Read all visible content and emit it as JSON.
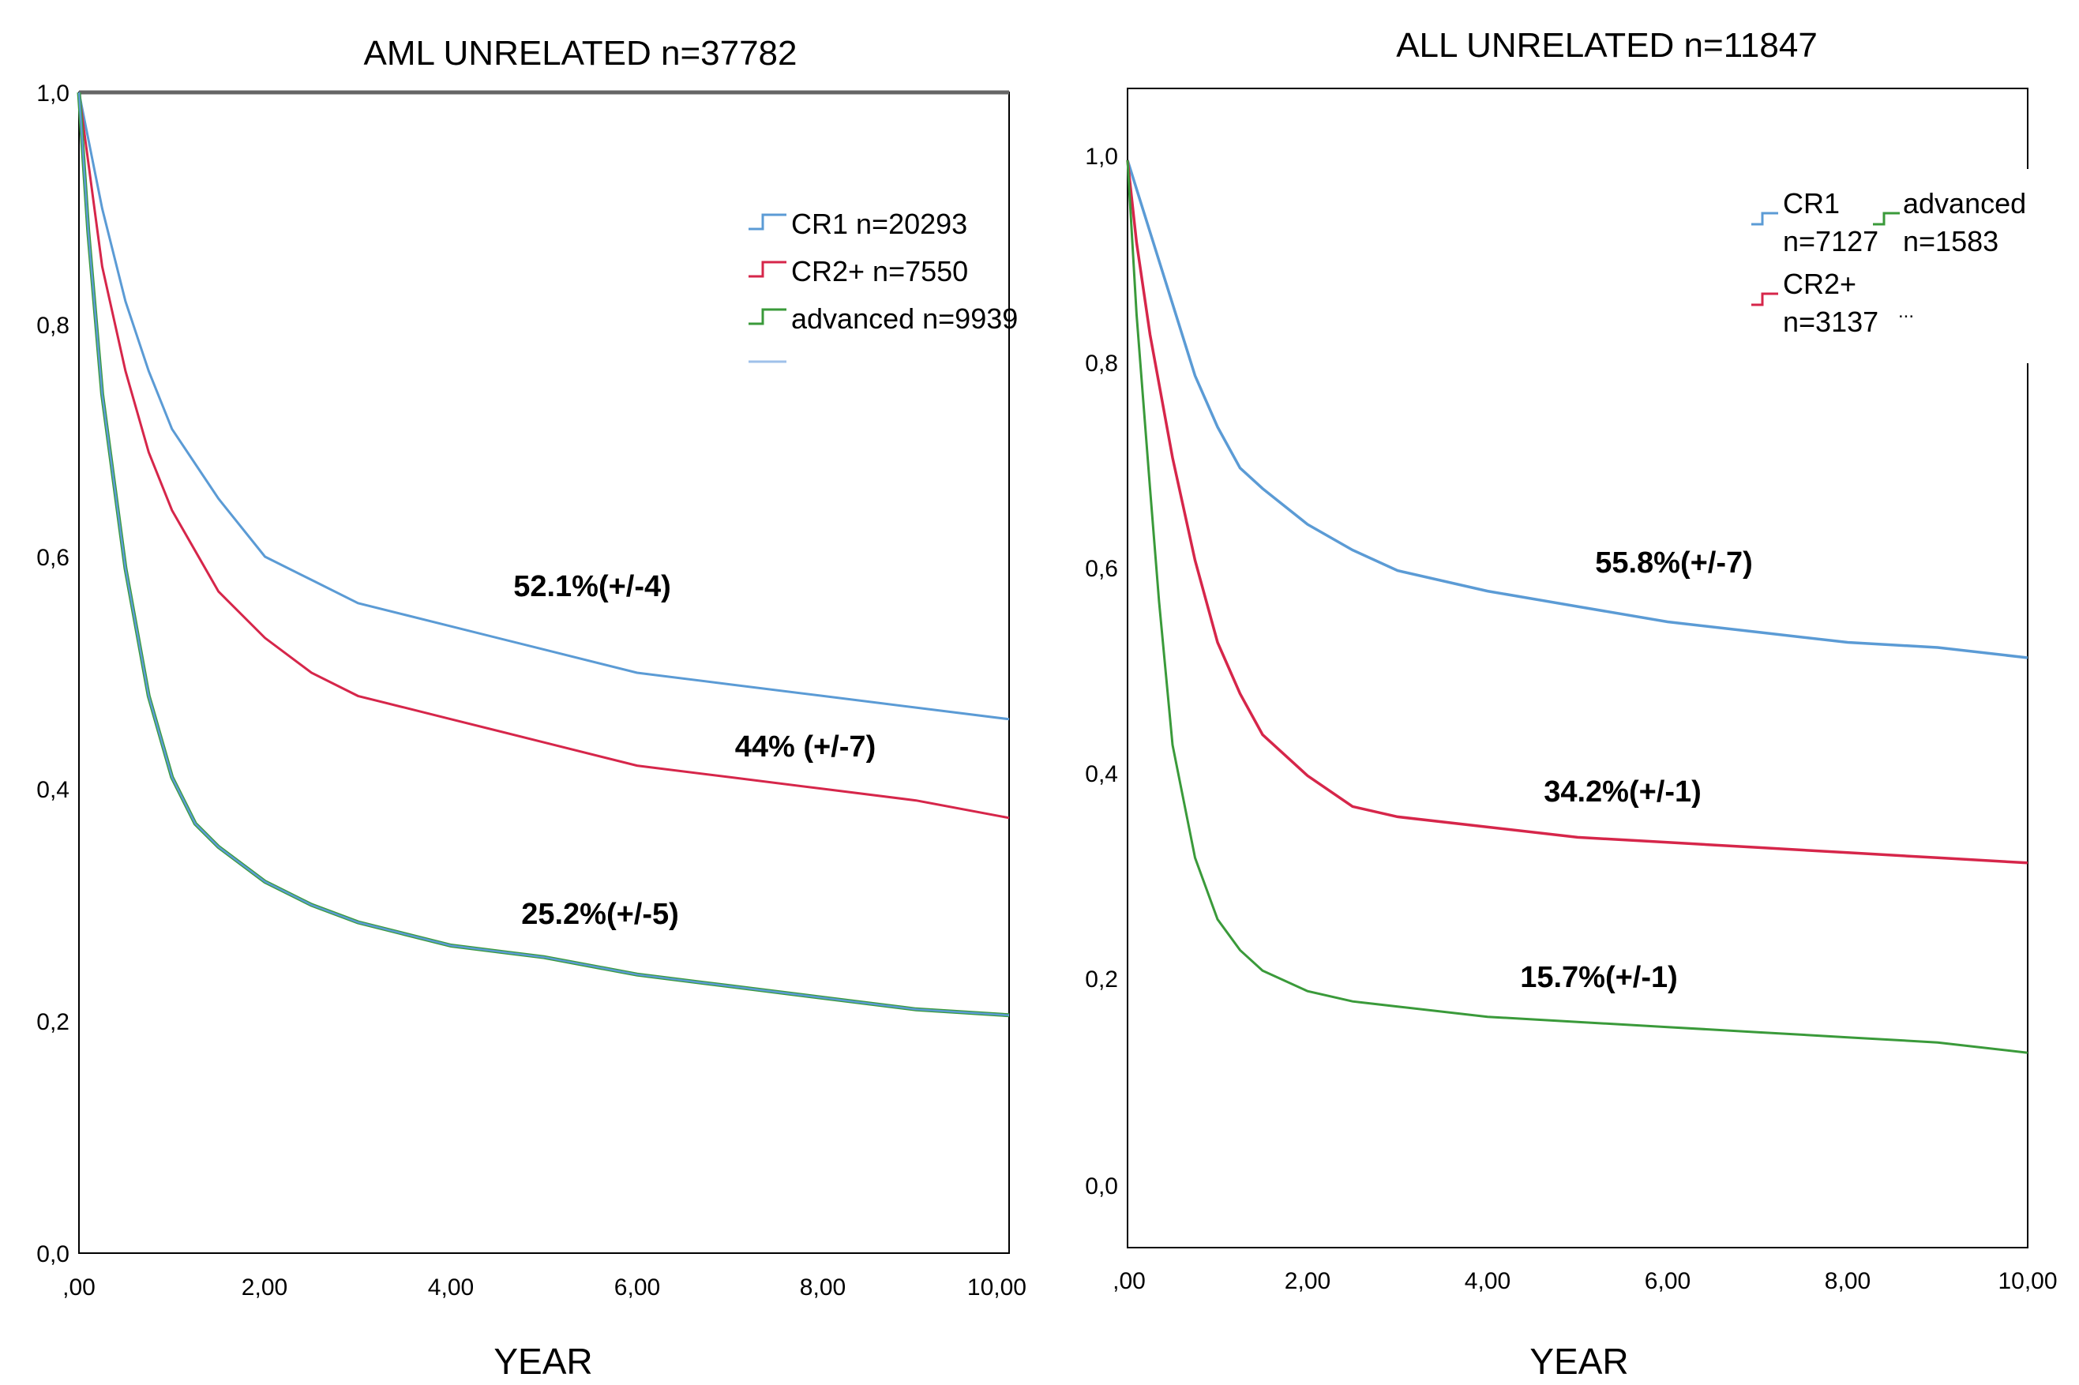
{
  "chart_data": [
    {
      "type": "line",
      "title": "AML UNRELATED n=37782",
      "xlabel": "YEAR",
      "ylabel": "",
      "xlim": [
        0,
        10
      ],
      "ylim": [
        0,
        1
      ],
      "x_tick_labels": [
        ",00",
        "2,00",
        "4,00",
        "6,00",
        "8,00",
        "10,00"
      ],
      "y_tick_labels": [
        "0,0",
        "0,2",
        "0,4",
        "0,6",
        "0,8",
        "1,0"
      ],
      "legend_position": "top-right",
      "series": [
        {
          "name": "CR1 n=20293",
          "color": "#5b9bd5",
          "x": [
            0,
            0.25,
            0.5,
            0.75,
            1,
            1.5,
            2,
            2.5,
            3,
            3.5,
            4,
            5,
            6,
            7,
            8,
            9,
            10
          ],
          "y": [
            1.0,
            0.9,
            0.82,
            0.76,
            0.71,
            0.65,
            0.6,
            0.58,
            0.56,
            0.55,
            0.54,
            0.52,
            0.5,
            0.49,
            0.48,
            0.47,
            0.46
          ]
        },
        {
          "name": "CR2+ n=7550",
          "color": "#d6264a",
          "x": [
            0,
            0.25,
            0.5,
            0.75,
            1,
            1.5,
            2,
            2.5,
            3,
            3.5,
            4,
            5,
            6,
            7,
            8,
            9,
            10
          ],
          "y": [
            1.0,
            0.85,
            0.76,
            0.69,
            0.64,
            0.57,
            0.53,
            0.5,
            0.48,
            0.47,
            0.46,
            0.44,
            0.42,
            0.41,
            0.4,
            0.39,
            0.375
          ]
        },
        {
          "name": "advanced n=9939",
          "color": "#3a9a3a",
          "x": [
            0,
            0.1,
            0.25,
            0.5,
            0.75,
            1,
            1.25,
            1.5,
            2,
            2.5,
            3,
            3.5,
            4,
            5,
            6,
            7,
            8,
            9,
            10
          ],
          "y": [
            1.0,
            0.88,
            0.74,
            0.59,
            0.48,
            0.41,
            0.37,
            0.35,
            0.32,
            0.3,
            0.285,
            0.275,
            0.265,
            0.255,
            0.24,
            0.23,
            0.22,
            0.21,
            0.205
          ]
        }
      ],
      "annotations": [
        "52.1%(+/-4)",
        "44% (+/-7)",
        "25.2%(+/-5)"
      ]
    },
    {
      "type": "line",
      "title": "ALL UNRELATED n=11847",
      "xlabel": "YEAR",
      "ylabel": "",
      "xlim": [
        0,
        10
      ],
      "ylim": [
        -0.06,
        1.07
      ],
      "x_tick_labels": [
        ",00",
        "2,00",
        "4,00",
        "6,00",
        "8,00",
        "10,00"
      ],
      "y_tick_labels": [
        "0,0",
        "0,2",
        "0,4",
        "0,6",
        "0,8",
        "1,0"
      ],
      "legend_position": "top-right",
      "series": [
        {
          "name_lines": [
            "CR1",
            "n=7127"
          ],
          "color": "#5b9bd5",
          "x": [
            0,
            0.25,
            0.5,
            0.75,
            1,
            1.25,
            1.5,
            2,
            2.5,
            3,
            4,
            5,
            6,
            7,
            8,
            9,
            10
          ],
          "y": [
            1.0,
            0.93,
            0.86,
            0.79,
            0.74,
            0.7,
            0.68,
            0.645,
            0.62,
            0.6,
            0.58,
            0.565,
            0.55,
            0.54,
            0.53,
            0.525,
            0.515
          ]
        },
        {
          "name_lines": [
            "CR2+",
            "n=3137"
          ],
          "color": "#d6264a",
          "x": [
            0,
            0.1,
            0.25,
            0.5,
            0.75,
            1,
            1.25,
            1.5,
            2,
            2.5,
            3,
            4,
            5,
            6,
            7,
            8,
            9,
            10
          ],
          "y": [
            1.0,
            0.92,
            0.83,
            0.71,
            0.61,
            0.53,
            0.48,
            0.44,
            0.4,
            0.37,
            0.36,
            0.35,
            0.34,
            0.335,
            0.33,
            0.325,
            0.32,
            0.315
          ]
        },
        {
          "name_lines": [
            "advanced",
            "n=1583"
          ],
          "color": "#3a9a3a",
          "x": [
            0,
            0.1,
            0.25,
            0.35,
            0.5,
            0.75,
            1,
            1.25,
            1.5,
            2,
            2.5,
            3,
            4,
            5,
            6,
            7,
            8,
            9,
            10
          ],
          "y": [
            1.0,
            0.85,
            0.68,
            0.57,
            0.43,
            0.32,
            0.26,
            0.23,
            0.21,
            0.19,
            0.18,
            0.175,
            0.165,
            0.16,
            0.155,
            0.15,
            0.145,
            0.14,
            0.13
          ]
        }
      ],
      "annotations": [
        "55.8%(+/-7)",
        "34.2%(+/-1)",
        "15.7%(+/-1)"
      ],
      "legend_extra": "..."
    }
  ]
}
